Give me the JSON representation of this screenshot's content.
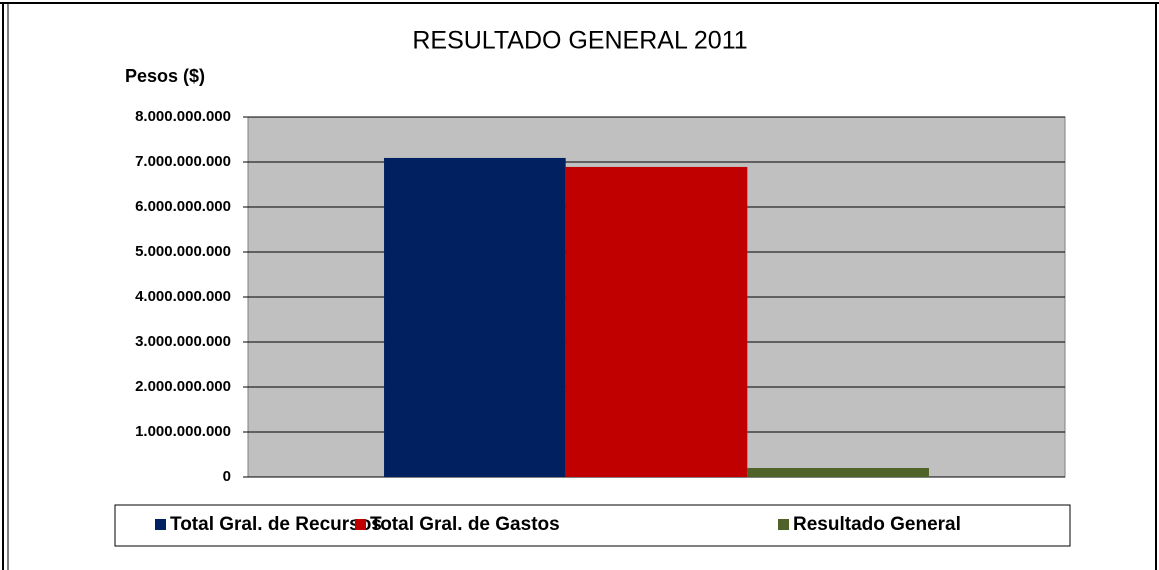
{
  "chart_data": {
    "type": "bar",
    "title": "RESULTADO GENERAL 2011",
    "y_label": "Pesos ($)",
    "categories": [
      null
    ],
    "series": [
      {
        "name": "Total Gral. de Recursos",
        "color": "#002060",
        "values": [
          7090000000
        ]
      },
      {
        "name": "Total Gral. de Gastos",
        "color": "#c00000",
        "values": [
          6890000000
        ]
      },
      {
        "name": "Resultado General",
        "color": "#4f6228",
        "values": [
          200000000
        ]
      }
    ],
    "ylim": [
      0,
      8000000000
    ],
    "yticks": [
      0,
      {
        "value": 1000000000,
        "label": "1.000.000.000"
      },
      {
        "value": 2000000000,
        "label": "2.000.000.000"
      },
      {
        "value": 3000000000,
        "label": "3.000.000.000"
      },
      {
        "value": 4000000000,
        "label": "4.000.000.000"
      },
      {
        "value": 5000000000,
        "label": "5.000.000.000"
      },
      {
        "value": 6000000000,
        "label": "6.000.000.000"
      },
      {
        "value": 7000000000,
        "label": "7.000.000.000"
      },
      {
        "value": 8000000000,
        "label": "8.000.000.000"
      }
    ],
    "grid": true,
    "legend": "bottom",
    "plot_background": "#c0c0c0"
  }
}
